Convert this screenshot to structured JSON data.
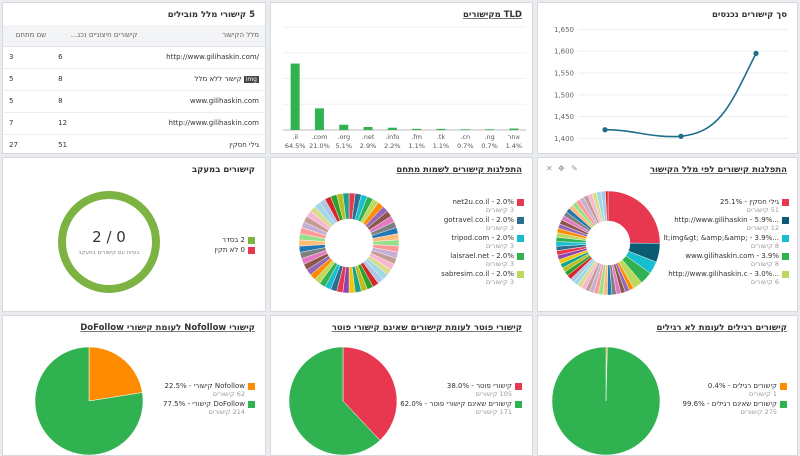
{
  "colors": {
    "green": "#2fb24f",
    "line": "#1f6f8b",
    "orange": "#ff8c00",
    "red": "#e8384f",
    "ring": "#7cb342"
  },
  "links_table": {
    "title": "5 קישורי מלל מובילים",
    "columns": [
      "מלל הקישור",
      "קישורים חיצוניים נכנ...",
      "שם מתחם"
    ],
    "rows": [
      {
        "text": "http://www.gilihaskin.com/",
        "links": "6",
        "domains": "3",
        "img": false
      },
      {
        "text": "קישור ללא מלל",
        "links": "8",
        "domains": "5",
        "img": true,
        "img_label": "img"
      },
      {
        "text": "www.gilihaskin.com",
        "links": "8",
        "domains": "5",
        "img": false
      },
      {
        "text": "http://www.gilihaskin.com",
        "links": "12",
        "domains": "7",
        "img": false
      },
      {
        "text": "גילי חסקין",
        "links": "51",
        "domains": "27",
        "img": false
      }
    ]
  },
  "tld": {
    "title": "TLD מקישורים",
    "chart_data": {
      "type": "bar",
      "categories": [
        ".il",
        ".com",
        ".org",
        ".net",
        ".info",
        ".fm",
        ".tk",
        ".cn",
        ".ng",
        "אחר"
      ],
      "values": [
        64.5,
        21.0,
        5.1,
        2.9,
        2.2,
        1.1,
        1.1,
        0.7,
        0.7,
        1.4
      ],
      "labels": [
        "64.5%",
        "21.0%",
        "5.1%",
        "2.9%",
        "2.2%",
        "1.1%",
        "1.1%",
        "0.7%",
        "0.7%",
        "1.4%"
      ],
      "ylim": [
        0,
        100
      ]
    }
  },
  "incoming": {
    "title": "סך קישורים נכנסים",
    "chart_data": {
      "type": "line",
      "y_ticks": [
        "1,650",
        "1,600",
        "1,550",
        "1,500",
        "1,450",
        "1,400"
      ],
      "values": [
        1420,
        1405,
        1595
      ],
      "ylim": [
        1385,
        1660
      ]
    }
  },
  "tracked": {
    "title": "קישורים במעקב",
    "center": "2 / 0",
    "sub": "בעיות עם קישורים במעקב",
    "legend": [
      "2 בסדר",
      "0 לא תקין"
    ]
  },
  "donut_domains": {
    "title": "התפלגות קישורים לשמות מתחם",
    "chart_data": {
      "type": "pie",
      "labels": [
        "net2u.co.il - 2.0%",
        "gotravel.co.il - 2.0%",
        "tripod.com - 2.0%",
        "laisrael.net - 2.0%",
        "sabresim.co.il - 2.0%"
      ],
      "values": [
        2.0,
        2.0,
        2.0,
        2.0,
        2.0
      ],
      "counts": [
        "3 קישורים",
        "3 קישורים",
        "3 קישורים",
        "3 קישורים",
        "3 קישורים"
      ]
    },
    "legend_colors": [
      "#e8384f",
      "#2c6e8f",
      "#17becf",
      "#2fb24f",
      "#bcd85f"
    ]
  },
  "donut_text": {
    "title": "התפלגות קישורים לפי מלל הקישור",
    "chart_data": {
      "type": "pie",
      "labels": [
        "גילי חסקין - 25.1%",
        "...http://www.gilihaskin - 5.9%",
        "...lt;img&gt; &amp;&amp; - 3.9%",
        "www.gilihaskin.com - 3.9%",
        "...http://www.gilihaskin.c - 3.0%"
      ],
      "values": [
        25.1,
        5.9,
        3.9,
        3.9,
        3.0
      ],
      "counts": [
        "51 קישורים",
        "12 קישורים",
        "8 קישורים",
        "8 קישורים",
        "6 קישורים"
      ]
    },
    "legend_colors": [
      "#e8384f",
      "#0b5b73",
      "#17becf",
      "#2fb24f",
      "#bcd85f"
    ]
  },
  "pie_dofollow": {
    "title": "קישורי Nofollow לעומת קישורי DoFollow",
    "chart_data": {
      "type": "pie",
      "labels": [
        "Nofollow קישורי - 22.5%",
        "DoFollow קישורי - 77.5%"
      ],
      "values": [
        22.5,
        77.5
      ],
      "counts": [
        "62 קישורים",
        "214 קישורים"
      ]
    }
  },
  "pie_follow": {
    "title": "קישורי פוטר לעומת קישורים שאינם קישורי פוטר",
    "chart_data": {
      "type": "pie",
      "labels": [
        "קישורי פוטר - 38.0%",
        "קישורים שאינם קישורי פוטר - 62.0%"
      ],
      "values": [
        38.0,
        62.0
      ],
      "counts": [
        "105 קישורים",
        "171 קישורים"
      ]
    }
  },
  "pie_regular": {
    "title": "קישורים רגילים לעומת לא רגילים",
    "chart_data": {
      "type": "pie",
      "labels": [
        "קישורים רגילים - 0.4%",
        "קישורים שאינם רגילים - 99.6%"
      ],
      "values": [
        0.4,
        99.6
      ],
      "counts": [
        "1 קישורים",
        "275 קישורים"
      ]
    }
  }
}
